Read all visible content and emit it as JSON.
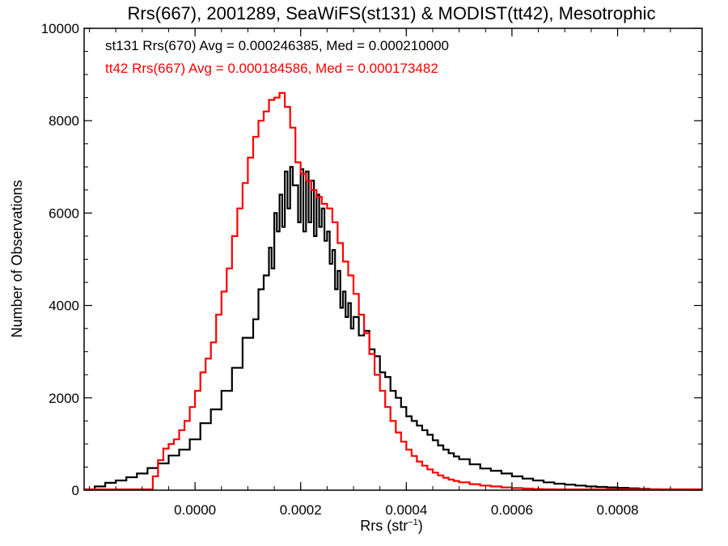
{
  "chart_data": {
    "type": "line",
    "title": "Rrs(667), 2001289, SeaWiFS(st131) & MODIST(tt42), Mesotrophic",
    "xlabel": "Rrs (str",
    "xlabel_sup": "−1",
    "xlabel_close": ")",
    "ylabel": "Number of Observations",
    "xlim": [
      -0.00021,
      0.00096
    ],
    "ylim": [
      0,
      10000
    ],
    "grid": false,
    "step": true,
    "x_ticks": [
      {
        "v": 0.0,
        "label": "0.0000"
      },
      {
        "v": 0.0002,
        "label": "0.0002"
      },
      {
        "v": 0.0004,
        "label": "0.0004"
      },
      {
        "v": 0.0006,
        "label": "0.0006"
      },
      {
        "v": 0.0008,
        "label": "0.0008"
      }
    ],
    "y_ticks": [
      {
        "v": 0,
        "label": "0"
      },
      {
        "v": 2000,
        "label": "2000"
      },
      {
        "v": 4000,
        "label": "4000"
      },
      {
        "v": 6000,
        "label": "6000"
      },
      {
        "v": 8000,
        "label": "8000"
      },
      {
        "v": 10000,
        "label": "10000"
      }
    ],
    "annotations": [
      {
        "text": "st131 Rrs(670) Avg = 0.000246385, Med = 0.000210000",
        "color": "#000000"
      },
      {
        "text": "tt42 Rrs(667) Avg = 0.000184586, Med = 0.000173482",
        "color": "#ff0000"
      }
    ],
    "series": [
      {
        "color": "#000000",
        "x": [
          -0.00021,
          -0.00019,
          -0.00017,
          -0.00015,
          -0.00013,
          -0.00011,
          -9e-05,
          -7e-05,
          -5e-05,
          -3e-05,
          -1e-05,
          1e-05,
          3e-05,
          5e-05,
          7e-05,
          9e-05,
          0.00011,
          0.00012,
          0.00013,
          0.00014,
          0.000145,
          0.00015,
          0.000155,
          0.00016,
          0.000165,
          0.00017,
          0.000175,
          0.00018,
          0.000185,
          0.00019,
          0.000195,
          0.0002,
          0.000205,
          0.00021,
          0.000215,
          0.00022,
          0.000225,
          0.00023,
          0.000235,
          0.00024,
          0.000245,
          0.00025,
          0.000255,
          0.00026,
          0.000265,
          0.00027,
          0.000275,
          0.00028,
          0.000285,
          0.00029,
          0.000295,
          0.0003,
          0.00031,
          0.00032,
          0.00033,
          0.00034,
          0.00035,
          0.00036,
          0.00037,
          0.00038,
          0.00039,
          0.0004,
          0.00041,
          0.00042,
          0.00043,
          0.00044,
          0.00045,
          0.00046,
          0.00047,
          0.00048,
          0.00049,
          0.0005,
          0.00052,
          0.00054,
          0.00056,
          0.00058,
          0.0006,
          0.00062,
          0.00064,
          0.00066,
          0.00068,
          0.0007,
          0.00072,
          0.00074,
          0.00076,
          0.00078,
          0.0008,
          0.00082,
          0.00084,
          0.00086,
          0.00088,
          0.0009,
          0.00092,
          0.00094,
          0.00096
        ],
        "y": [
          0,
          80,
          160,
          210,
          280,
          360,
          480,
          580,
          750,
          880,
          1100,
          1450,
          1750,
          2150,
          2650,
          3300,
          3700,
          4350,
          4650,
          5250,
          4800,
          6000,
          5600,
          6400,
          5700,
          6900,
          6100,
          7000,
          6600,
          6600,
          5800,
          6950,
          5600,
          6900,
          5800,
          6700,
          5500,
          6400,
          5700,
          6100,
          5400,
          5600,
          4900,
          5200,
          4350,
          4750,
          3950,
          4300,
          3750,
          4050,
          3500,
          3750,
          3350,
          3450,
          3050,
          2900,
          2550,
          2450,
          2150,
          2000,
          1800,
          1600,
          1500,
          1400,
          1300,
          1200,
          1080,
          970,
          880,
          800,
          730,
          670,
          560,
          470,
          420,
          360,
          300,
          250,
          210,
          170,
          140,
          120,
          100,
          80,
          70,
          60,
          50,
          40,
          30,
          20,
          15,
          10,
          5,
          0,
          0
        ]
      },
      {
        "color": "#ff0000",
        "x": [
          -0.00021,
          -9e-05,
          -8e-05,
          -7e-05,
          -6e-05,
          -5e-05,
          -4e-05,
          -3e-05,
          -2e-05,
          -1e-05,
          0.0,
          1e-05,
          2e-05,
          3e-05,
          4e-05,
          5e-05,
          6e-05,
          7e-05,
          8e-05,
          9e-05,
          0.0001,
          0.00011,
          0.00012,
          0.00013,
          0.00014,
          0.00015,
          0.00016,
          0.00017,
          0.00018,
          0.00019,
          0.0002,
          0.00021,
          0.00022,
          0.00023,
          0.00024,
          0.00025,
          0.00026,
          0.00027,
          0.00028,
          0.00029,
          0.0003,
          0.00031,
          0.00032,
          0.00033,
          0.00034,
          0.00035,
          0.00036,
          0.00037,
          0.00038,
          0.00039,
          0.0004,
          0.00041,
          0.00042,
          0.00043,
          0.00044,
          0.00045,
          0.00046,
          0.00047,
          0.00048,
          0.00049,
          0.0005,
          0.00052,
          0.00054,
          0.00056,
          0.00058,
          0.0006,
          0.00062,
          0.00064,
          0.00066,
          0.00068,
          0.0007,
          0.00072,
          0.00074,
          0.00076,
          0.00078,
          0.0008,
          0.00082,
          0.00084,
          0.00086,
          0.00088,
          0.0009,
          0.00092,
          0.00094,
          0.00096
        ],
        "y": [
          0,
          0,
          300,
          650,
          900,
          1000,
          1100,
          1300,
          1500,
          1800,
          2150,
          2550,
          2850,
          3200,
          3800,
          4300,
          4800,
          5500,
          6100,
          6650,
          7200,
          7650,
          8000,
          8200,
          8450,
          8500,
          8600,
          8300,
          7850,
          7100,
          6850,
          6700,
          6500,
          6350,
          6200,
          6100,
          5800,
          5350,
          4950,
          4650,
          4250,
          3800,
          3400,
          2950,
          2500,
          2150,
          1800,
          1500,
          1250,
          1050,
          880,
          740,
          620,
          530,
          450,
          380,
          320,
          270,
          230,
          200,
          170,
          130,
          100,
          80,
          60,
          45,
          35,
          25,
          20,
          15,
          10,
          8,
          6,
          4,
          3,
          2,
          1,
          1,
          0,
          0,
          0,
          0,
          0,
          0
        ]
      }
    ]
  }
}
